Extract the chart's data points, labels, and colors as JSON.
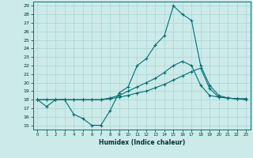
{
  "xlabel": "Humidex (Indice chaleur)",
  "ylabel": "",
  "background_color": "#cceaea",
  "grid_color": "#aad4d4",
  "line_color": "#007070",
  "xlim": [
    -0.5,
    23.5
  ],
  "ylim": [
    14.5,
    29.5
  ],
  "xticks": [
    0,
    1,
    2,
    3,
    4,
    5,
    6,
    7,
    8,
    9,
    10,
    11,
    12,
    13,
    14,
    15,
    16,
    17,
    18,
    19,
    20,
    21,
    22,
    23
  ],
  "yticks": [
    15,
    16,
    17,
    18,
    19,
    20,
    21,
    22,
    23,
    24,
    25,
    26,
    27,
    28,
    29
  ],
  "line1_x": [
    0,
    1,
    2,
    3,
    4,
    5,
    6,
    7,
    8,
    9,
    10,
    11,
    12,
    13,
    14,
    15,
    16,
    17,
    18,
    19,
    20,
    21,
    22,
    23
  ],
  "line1_y": [
    18.0,
    17.2,
    18.0,
    18.0,
    16.3,
    15.8,
    15.0,
    15.0,
    16.7,
    18.8,
    19.5,
    22.0,
    22.8,
    24.4,
    25.5,
    29.0,
    28.0,
    27.3,
    22.0,
    19.7,
    18.5,
    18.2,
    18.1,
    18.0
  ],
  "line2_x": [
    0,
    1,
    2,
    3,
    4,
    5,
    6,
    7,
    8,
    9,
    10,
    11,
    12,
    13,
    14,
    15,
    16,
    17,
    18,
    19,
    20,
    21,
    22,
    23
  ],
  "line2_y": [
    18.0,
    18.0,
    18.0,
    18.0,
    18.0,
    18.0,
    18.0,
    18.0,
    18.1,
    18.3,
    18.5,
    18.8,
    19.0,
    19.4,
    19.8,
    20.3,
    20.8,
    21.3,
    21.7,
    19.3,
    18.3,
    18.2,
    18.1,
    18.1
  ],
  "line3_x": [
    0,
    1,
    2,
    3,
    4,
    5,
    6,
    7,
    8,
    9,
    10,
    11,
    12,
    13,
    14,
    15,
    16,
    17,
    18,
    19,
    20,
    21,
    22,
    23
  ],
  "line3_y": [
    18.0,
    18.0,
    18.0,
    18.0,
    18.0,
    18.0,
    18.0,
    18.0,
    18.2,
    18.5,
    19.0,
    19.5,
    20.0,
    20.5,
    21.2,
    22.0,
    22.5,
    22.0,
    19.7,
    18.5,
    18.3,
    18.2,
    18.1,
    18.1
  ]
}
